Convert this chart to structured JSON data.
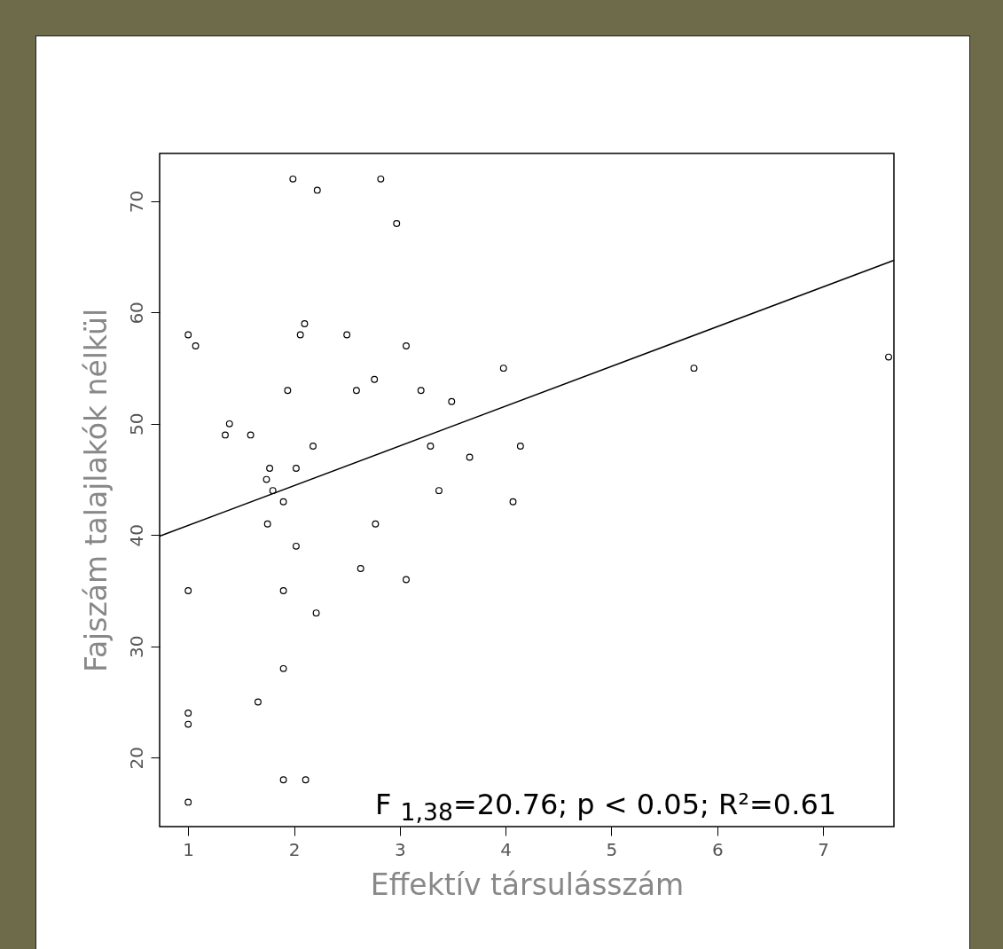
{
  "chart_data": {
    "type": "scatter",
    "xlabel": "Effektív társulásszám",
    "ylabel": "Fajszám talajlakók nélkül",
    "xlim": [
      0.73,
      7.67
    ],
    "ylim": [
      13.8,
      74.3
    ],
    "xticks": [
      1,
      2,
      3,
      4,
      5,
      6,
      7
    ],
    "yticks": [
      20,
      30,
      40,
      50,
      60,
      70
    ],
    "grid": false,
    "series": [
      {
        "color": "#000000",
        "marker": "circle",
        "x": [
          1,
          1.07,
          1.99,
          2.22,
          2.82,
          2.97,
          2.1,
          2.06,
          2.5,
          3.06,
          3.98,
          5.78,
          7.62,
          1.94,
          2.59,
          3.2,
          2.76,
          3.49,
          1.39,
          1.35,
          1.59,
          2.18,
          3.29,
          4.14,
          3.66,
          1.77,
          2.02,
          1.74,
          1.8,
          3.37,
          1.9,
          4.07,
          1.75,
          2.77,
          2.02,
          2.63,
          3.06,
          1,
          1.9,
          2.21,
          1.9,
          1.66,
          1,
          1,
          1.9,
          2.11,
          1
        ],
        "values": [
          58,
          57,
          72,
          71,
          72,
          68,
          59,
          58,
          58,
          57,
          55,
          55,
          56,
          53,
          53,
          53,
          54,
          52,
          50,
          49,
          49,
          48,
          48,
          48,
          47,
          46,
          46,
          45,
          44,
          44,
          43,
          43,
          41,
          41,
          39,
          37,
          36,
          35,
          35,
          33,
          28,
          25,
          24,
          23,
          18,
          18,
          16
        ]
      },
      {
        "type": "line",
        "color": "#000000",
        "marker": "none",
        "line_style": "solid",
        "x": [
          0.73,
          7.67
        ],
        "values": [
          39.9,
          64.7
        ]
      }
    ],
    "annotations": [
      "F $_{1,38}$=20.76; p < 0.05; R²=0.61"
    ]
  }
}
